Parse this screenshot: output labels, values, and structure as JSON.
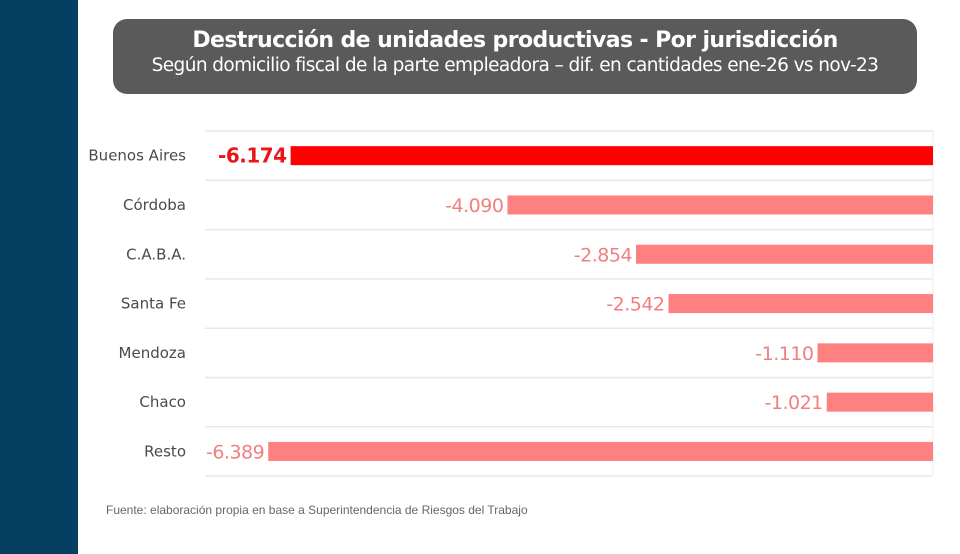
{
  "header": {
    "title": "Destrucción de unidades productivas - Por jurisdicción",
    "subtitle": "Según domicilio fiscal de la parte empleadora – dif. en cantidades ene-26 vs nov-23"
  },
  "source": "Fuente: elaboración propia en base a Superintendencia de Riesgos del Trabajo",
  "colors": {
    "sidebar": "#053f61",
    "highlight_bar": "#ff0000",
    "bar": "#ff8080",
    "highlight_label": "#e8161b",
    "label": "#f08080"
  },
  "chart_data": {
    "type": "bar",
    "orientation": "horizontal",
    "title": "Destrucción de unidades productivas - Por jurisdicción",
    "subtitle": "Según domicilio fiscal de la parte empleadora – dif. en cantidades ene-26 vs nov-23",
    "xlabel": "",
    "ylabel": "",
    "categories": [
      "Buenos Aires",
      "Córdoba",
      "C.A.B.A.",
      "Santa Fe",
      "Mendoza",
      "Chaco",
      "Resto"
    ],
    "values": [
      -6174,
      -4090,
      -2854,
      -2542,
      -1110,
      -1021,
      -6389
    ],
    "value_labels": [
      "-6.174",
      "-4.090",
      "-2.854",
      "-2.542",
      "-1.110",
      "-1.021",
      "-6.389"
    ],
    "highlighted": [
      "Buenos Aires"
    ],
    "xlim": [
      -7000,
      0
    ],
    "grid": true,
    "legend": "none"
  }
}
